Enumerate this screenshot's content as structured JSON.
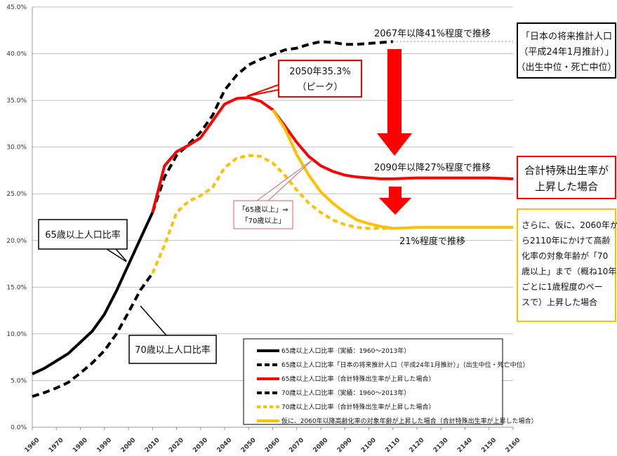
{
  "colors": {
    "black": "#000000",
    "red": "#ff0000",
    "yellow": "#ffc000",
    "gray_dotted": "#c8c8c8",
    "arrow": "#ff0000",
    "projection_box_border": "#000000",
    "fertility_box_border": "#ff0000",
    "age_shift_box_border": "#ffc000",
    "peak_box_border": "#ff0000",
    "pink_box_border": "#e06060"
  },
  "chart_data": {
    "type": "line",
    "x_ticks": [
      1960,
      1970,
      1980,
      1990,
      2000,
      2010,
      2020,
      2030,
      2040,
      2050,
      2060,
      2070,
      2080,
      2090,
      2100,
      2110,
      2120,
      2130,
      2140,
      2150,
      2160
    ],
    "y_ticks": [
      "0.0%",
      "5.0%",
      "10.0%",
      "15.0%",
      "20.0%",
      "25.0%",
      "30.0%",
      "35.0%",
      "40.0%",
      "45.0%"
    ],
    "ylim": [
      0,
      45
    ],
    "xlim": [
      1960,
      2160
    ],
    "series": [
      {
        "name": "65歳以上人口比率（実績：1960～2013年）",
        "style": "solid",
        "color": "#000000",
        "points": [
          [
            1960,
            5.7
          ],
          [
            1965,
            6.3
          ],
          [
            1970,
            7.1
          ],
          [
            1975,
            7.9
          ],
          [
            1980,
            9.1
          ],
          [
            1985,
            10.3
          ],
          [
            1990,
            12.1
          ],
          [
            1995,
            14.6
          ],
          [
            2000,
            17.4
          ],
          [
            2005,
            20.2
          ],
          [
            2010,
            23.0
          ]
        ]
      },
      {
        "name": "65歳以上人口比率「日本の将来推計人口（平成24年1月推計）」（出生中位・死亡中位）",
        "style": "dashed",
        "color": "#000000",
        "points": [
          [
            2010,
            23.0
          ],
          [
            2015,
            26.8
          ],
          [
            2020,
            29.1
          ],
          [
            2025,
            30.3
          ],
          [
            2030,
            31.6
          ],
          [
            2035,
            33.4
          ],
          [
            2040,
            36.1
          ],
          [
            2045,
            37.7
          ],
          [
            2050,
            38.8
          ],
          [
            2055,
            39.4
          ],
          [
            2060,
            39.9
          ],
          [
            2065,
            40.4
          ],
          [
            2070,
            40.6
          ],
          [
            2075,
            41.0
          ],
          [
            2080,
            41.3
          ],
          [
            2085,
            41.2
          ],
          [
            2090,
            41.0
          ],
          [
            2095,
            41.0
          ],
          [
            2100,
            41.1
          ],
          [
            2105,
            41.2
          ],
          [
            2110,
            41.3
          ]
        ]
      },
      {
        "name": "65歳以上人口比率（合計特殊出生率が上昇した場合）",
        "style": "solid",
        "color": "#ff0000",
        "points": [
          [
            2010,
            23.0
          ],
          [
            2015,
            28.0
          ],
          [
            2020,
            29.5
          ],
          [
            2025,
            30.2
          ],
          [
            2030,
            31.0
          ],
          [
            2035,
            32.8
          ],
          [
            2040,
            34.6
          ],
          [
            2045,
            35.2
          ],
          [
            2050,
            35.3
          ],
          [
            2055,
            34.9
          ],
          [
            2060,
            34.0
          ],
          [
            2065,
            32.3
          ],
          [
            2070,
            30.5
          ],
          [
            2075,
            29.0
          ],
          [
            2080,
            28.0
          ],
          [
            2085,
            27.4
          ],
          [
            2090,
            27.0
          ],
          [
            2095,
            26.8
          ],
          [
            2100,
            26.7
          ],
          [
            2105,
            26.6
          ],
          [
            2110,
            26.6
          ],
          [
            2120,
            26.7
          ],
          [
            2130,
            26.7
          ],
          [
            2140,
            26.7
          ],
          [
            2150,
            26.7
          ],
          [
            2160,
            26.6
          ]
        ]
      },
      {
        "name": "70歳以上人口比率（実績：1960～2013年）",
        "style": "dashed",
        "color": "#000000",
        "points": [
          [
            1960,
            3.3
          ],
          [
            1965,
            3.7
          ],
          [
            1970,
            4.2
          ],
          [
            1975,
            4.8
          ],
          [
            1980,
            5.8
          ],
          [
            1985,
            6.9
          ],
          [
            1990,
            8.2
          ],
          [
            1995,
            10.0
          ],
          [
            2000,
            12.3
          ],
          [
            2005,
            14.7
          ],
          [
            2010,
            16.5
          ]
        ]
      },
      {
        "name": "70歳以上人口比率（合計特殊出生率が上昇した場合）",
        "style": "dashed",
        "color": "#ffc000",
        "points": [
          [
            2010,
            16.5
          ],
          [
            2015,
            19.5
          ],
          [
            2020,
            23.0
          ],
          [
            2025,
            24.2
          ],
          [
            2030,
            24.8
          ],
          [
            2035,
            25.7
          ],
          [
            2040,
            27.8
          ],
          [
            2045,
            28.8
          ],
          [
            2050,
            29.1
          ],
          [
            2055,
            29.0
          ],
          [
            2060,
            28.3
          ],
          [
            2065,
            27.0
          ],
          [
            2070,
            25.4
          ],
          [
            2075,
            24.0
          ],
          [
            2080,
            23.0
          ],
          [
            2085,
            22.2
          ],
          [
            2090,
            21.7
          ],
          [
            2095,
            21.4
          ],
          [
            2100,
            21.3
          ],
          [
            2105,
            21.3
          ],
          [
            2110,
            21.3
          ]
        ]
      },
      {
        "name": "仮に、2060年以降高齢化率の対象年齢が上昇した場合（合計特殊出生率が上昇した場合）",
        "style": "solid",
        "color": "#ffc000",
        "points": [
          [
            2060,
            34.0
          ],
          [
            2065,
            32.0
          ],
          [
            2070,
            29.2
          ],
          [
            2075,
            27.0
          ],
          [
            2080,
            25.2
          ],
          [
            2085,
            24.0
          ],
          [
            2090,
            23.0
          ],
          [
            2095,
            22.2
          ],
          [
            2100,
            21.8
          ],
          [
            2105,
            21.5
          ],
          [
            2110,
            21.3
          ],
          [
            2120,
            21.4
          ],
          [
            2130,
            21.4
          ],
          [
            2140,
            21.4
          ],
          [
            2150,
            21.4
          ],
          [
            2160,
            21.4
          ]
        ]
      },
      {
        "name": "",
        "style": "dotted",
        "color": "#c8c8c8",
        "points": [
          [
            2110,
            41.3
          ],
          [
            2120,
            41.3
          ],
          [
            2130,
            41.3
          ],
          [
            2140,
            41.3
          ],
          [
            2150,
            41.3
          ],
          [
            2160,
            41.3
          ]
        ]
      }
    ]
  },
  "labels": {
    "label_41": "2067年以降41%程度で推移",
    "label_27": "2090年以降27%程度で推移",
    "label_21": "21%程度で推移",
    "peak_line1": "2050年35.3%",
    "peak_line2": "（ピーク）",
    "over65": "65歳以上人口比率",
    "over70": "70歳以上人口比率",
    "shift_line1": "「65歳以上」⇒",
    "shift_line2": "「70歳以上」",
    "projection_line1": "「日本の将来推計人口",
    "projection_line2": "（平成24年1月推計）」",
    "projection_line3": "（出生中位・死亡中位）",
    "fertility_line1": "合計特殊出生率が",
    "fertility_line2": "上昇した場合",
    "ageshift_line1": "さらに、仮に、2060年か",
    "ageshift_line2": "ら2110年にかけて高齢",
    "ageshift_line3": "化率の対象年齢が「70",
    "ageshift_line4": "歳以上」まで（概ね10年",
    "ageshift_line5": "ごとに1歳程度のペー",
    "ageshift_line6": "スで）上昇した場合"
  },
  "legend": [
    "65歳以上人口比率（実績：1960～2013年）",
    "65歳以上人口比率「日本の将来推計人口（平成24年1月推計）」（出生中位・死亡中位）",
    "65歳以上人口比率（合計特殊出生率が上昇した場合）",
    "70歳以上人口比率（実績：1960～2013年）",
    "70歳以上人口比率（合計特殊出生率が上昇した場合）",
    "仮に、2060年以降高齢化率の対象年齢が上昇した場合（合計特殊出生率が上昇した場合）"
  ]
}
